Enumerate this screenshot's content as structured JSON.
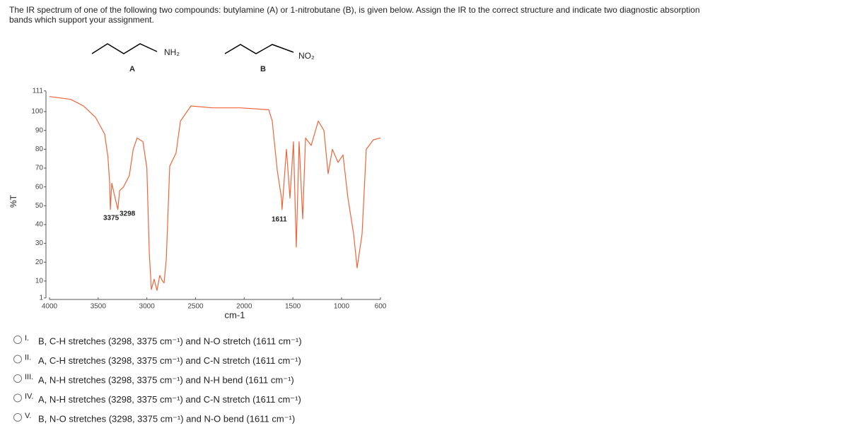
{
  "question": [
    "The IR spectrum of one of the following two compounds:  butylamine (A) or 1-nitrobutane (B), is given below. Assign the IR to the correct structure and indicate two diagnostic absorption",
    "bands which support your assignment."
  ],
  "structures": {
    "a_group": "NH₂",
    "a_label": "A",
    "b_group": "NO₂",
    "b_label": "B"
  },
  "chart_data": {
    "type": "line",
    "xlabel": "cm-1",
    "ylabel": "%T",
    "xlim": [
      4000,
      600
    ],
    "ylim": [
      1,
      111
    ],
    "xticks": [
      4000,
      3500,
      3000,
      2500,
      2000,
      1500,
      1000,
      600
    ],
    "yticks": [
      1,
      10,
      20,
      30,
      40,
      50,
      60,
      70,
      80,
      90,
      100,
      111
    ],
    "annotations": [
      "3375",
      "3298",
      "1611"
    ],
    "color": "#f0643a",
    "x": [
      4000,
      3782,
      3651,
      3528,
      3433,
      3400,
      3382,
      3375,
      3360,
      3330,
      3298,
      3280,
      3240,
      3180,
      3140,
      3100,
      3040,
      3000,
      2975,
      2954,
      2925,
      2896,
      2867,
      2840,
      2823,
      2800,
      2765,
      2700,
      2655,
      2547,
      2330,
      2041,
      1748,
      1712,
      1661,
      1617,
      1611,
      1566,
      1530,
      1494,
      1465,
      1436,
      1399,
      1370,
      1312,
      1239,
      1181,
      1138,
      1094,
      1036,
      985,
      934,
      876,
      840,
      789,
      746,
      673,
      600
    ],
    "values": [
      108,
      106.5,
      103,
      97,
      88,
      76,
      62,
      48,
      62,
      55,
      48,
      58,
      60,
      66,
      80,
      86,
      84,
      70,
      25,
      5.5,
      11,
      5,
      13,
      10,
      9,
      22,
      71,
      78,
      95,
      103,
      102,
      102,
      101,
      95,
      69,
      54,
      48,
      80,
      54,
      84,
      28,
      84,
      43,
      86,
      82,
      95,
      90,
      67,
      80,
      73,
      77,
      54,
      35,
      17,
      35,
      80,
      85,
      86
    ]
  },
  "options": [
    {
      "numeral": "I.",
      "text": "B, C-H stretches (3298, 3375 cm⁻¹) and N-O stretch (1611 cm⁻¹)"
    },
    {
      "numeral": "II.",
      "text": "A, C-H stretches (3298, 3375 cm⁻¹) and C-N stretch (1611 cm⁻¹)"
    },
    {
      "numeral": "III.",
      "text": "A, N-H stretches (3298, 3375 cm⁻¹) and N-H bend (1611 cm⁻¹)"
    },
    {
      "numeral": "IV.",
      "text": "A, N-H stretches (3298, 3375 cm⁻¹) and C-N stretch (1611 cm⁻¹)"
    },
    {
      "numeral": "V.",
      "text": "B, N-O stretches (3298, 3375 cm⁻¹) and N-O bend (1611 cm⁻¹)"
    }
  ]
}
